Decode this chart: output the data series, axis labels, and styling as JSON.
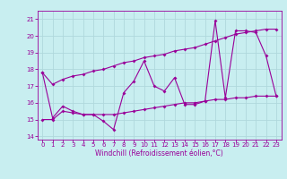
{
  "xlabel": "Windchill (Refroidissement éolien,°C)",
  "background_color": "#c8eef0",
  "grid_color": "#b0d8dc",
  "line_color": "#990099",
  "x": [
    0,
    1,
    2,
    3,
    4,
    5,
    6,
    7,
    8,
    9,
    10,
    11,
    12,
    13,
    14,
    15,
    16,
    17,
    18,
    19,
    20,
    21,
    22,
    23
  ],
  "y_main": [
    17.8,
    15.1,
    15.8,
    15.5,
    15.3,
    15.3,
    14.9,
    14.4,
    16.6,
    17.3,
    18.5,
    17.0,
    16.7,
    17.5,
    15.9,
    15.9,
    16.1,
    20.9,
    16.3,
    20.3,
    20.3,
    20.2,
    18.8,
    16.4
  ],
  "y_low": [
    15.0,
    15.0,
    15.5,
    15.4,
    15.3,
    15.3,
    15.3,
    15.3,
    15.4,
    15.5,
    15.6,
    15.7,
    15.8,
    15.9,
    16.0,
    16.0,
    16.1,
    16.2,
    16.2,
    16.3,
    16.3,
    16.4,
    16.4,
    16.4
  ],
  "y_high": [
    17.8,
    17.1,
    17.4,
    17.6,
    17.7,
    17.9,
    18.0,
    18.2,
    18.4,
    18.5,
    18.7,
    18.8,
    18.9,
    19.1,
    19.2,
    19.3,
    19.5,
    19.7,
    19.9,
    20.1,
    20.2,
    20.3,
    20.4,
    20.4
  ],
  "ylim": [
    13.8,
    21.5
  ],
  "xlim": [
    -0.5,
    23.5
  ],
  "yticks": [
    14,
    15,
    16,
    17,
    18,
    19,
    20,
    21
  ],
  "xticks": [
    0,
    1,
    2,
    3,
    4,
    5,
    6,
    7,
    8,
    9,
    10,
    11,
    12,
    13,
    14,
    15,
    16,
    17,
    18,
    19,
    20,
    21,
    22,
    23
  ],
  "tick_fontsize": 5.0,
  "xlabel_fontsize": 5.5,
  "marker_size": 2.0,
  "linewidth": 0.8
}
